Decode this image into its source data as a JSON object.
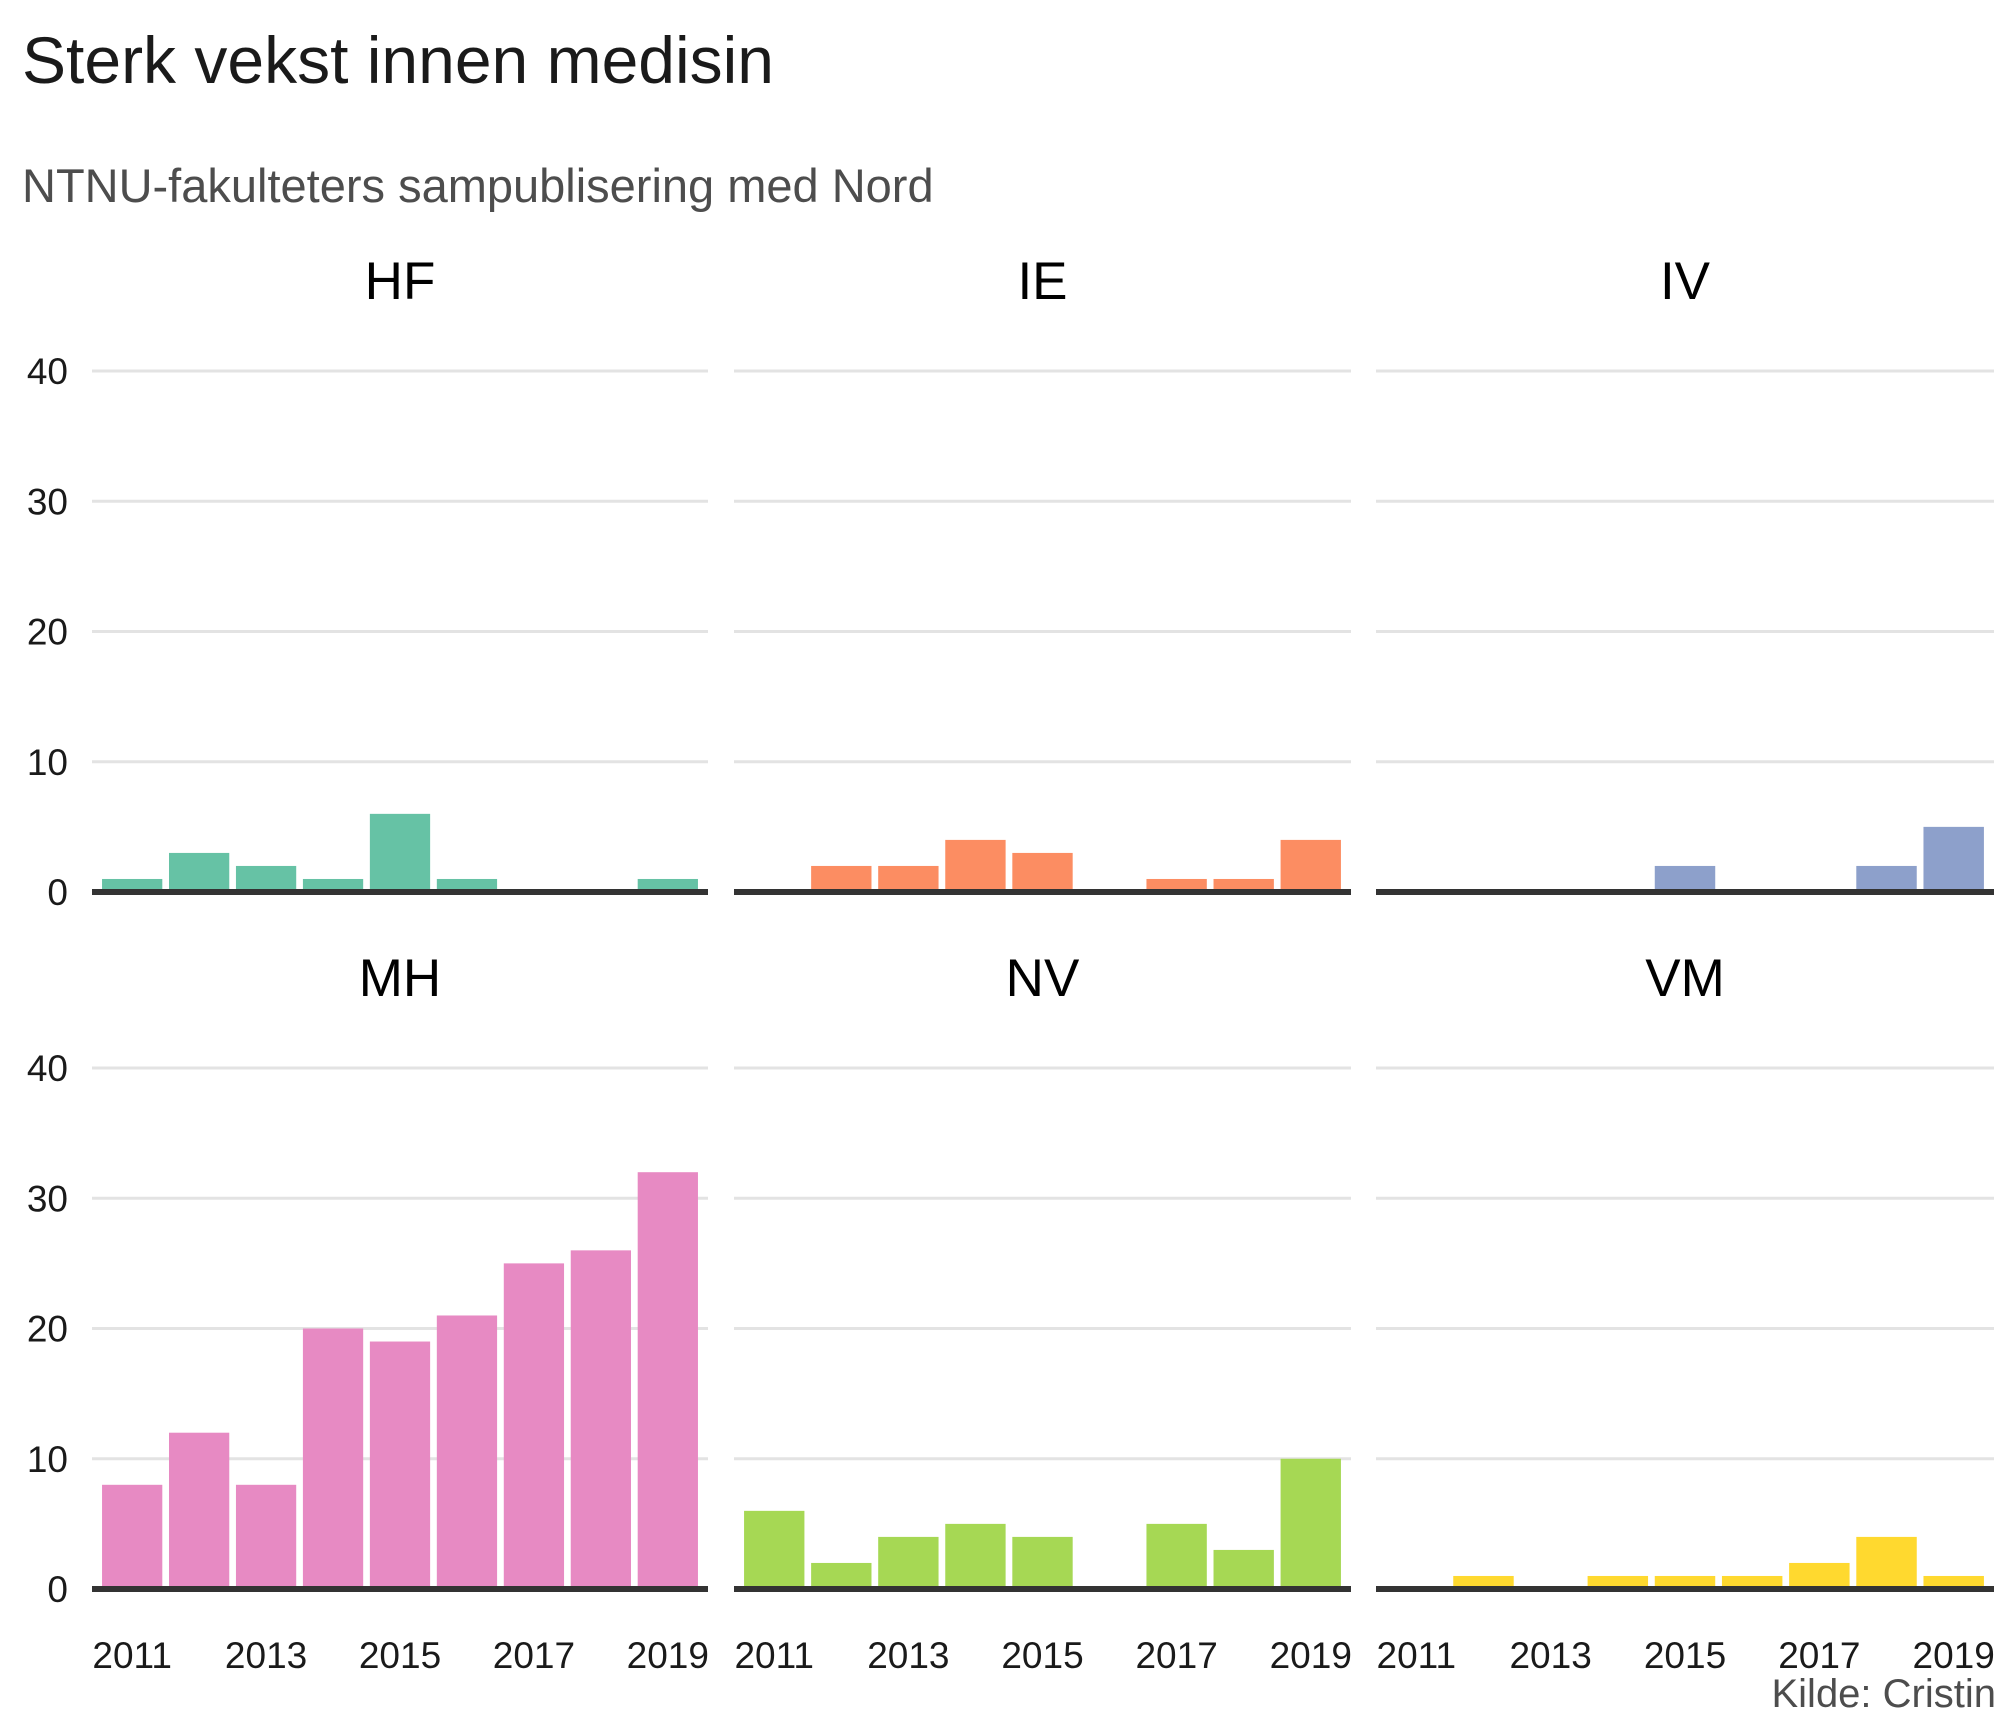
{
  "title": "Sterk vekst innen medisin",
  "subtitle": "NTNU-fakulteters sampublisering med Nord",
  "caption": "Kilde: Cristin",
  "chart_data": {
    "type": "bar",
    "layout": "facets 3 columns x 2 rows, shared axes",
    "x": [
      2011,
      2012,
      2013,
      2014,
      2015,
      2016,
      2017,
      2018,
      2019
    ],
    "x_tick_labels": [
      "2011",
      "2013",
      "2015",
      "2017",
      "2019"
    ],
    "y_ticks": [
      0,
      10,
      20,
      30,
      40
    ],
    "ylim": [
      0,
      40
    ],
    "grid": "horizontal major gridlines",
    "legend": "none",
    "series": [
      {
        "name": "HF",
        "color": "#66c2a5",
        "values": [
          1,
          3,
          2,
          1,
          6,
          1,
          0,
          0,
          1
        ]
      },
      {
        "name": "IE",
        "color": "#fc8d62",
        "values": [
          0,
          2,
          2,
          4,
          3,
          0,
          1,
          1,
          4
        ]
      },
      {
        "name": "IV",
        "color": "#8da0cb",
        "values": [
          0,
          0,
          0,
          0,
          2,
          0,
          0,
          2,
          5
        ]
      },
      {
        "name": "MH",
        "color": "#e78ac3",
        "values": [
          8,
          12,
          8,
          20,
          19,
          21,
          25,
          26,
          32
        ]
      },
      {
        "name": "NV",
        "color": "#a6d854",
        "values": [
          6,
          2,
          4,
          5,
          4,
          0,
          5,
          3,
          10
        ]
      },
      {
        "name": "VM",
        "color": "#ffd92f",
        "values": [
          0,
          1,
          0,
          1,
          1,
          1,
          2,
          4,
          1
        ]
      }
    ]
  }
}
